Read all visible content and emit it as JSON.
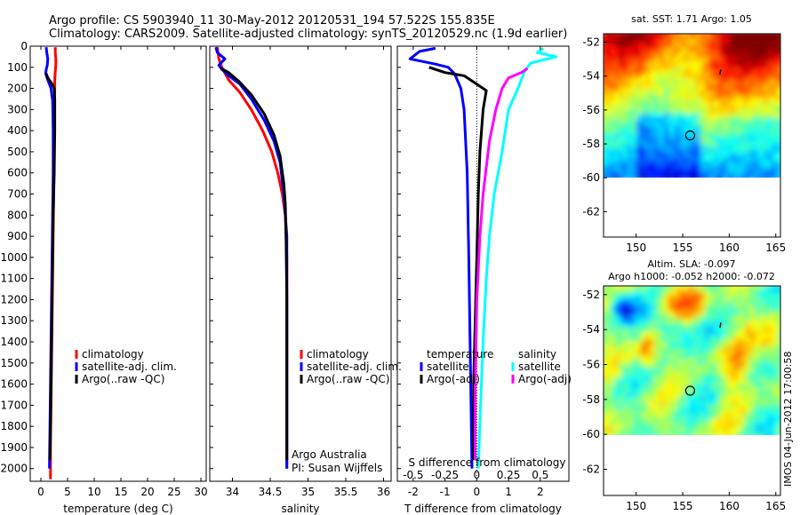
{
  "header": {
    "line1": "Argo profile: CS 5903940_11 30-May-2012 20120531_194 57.522S 155.835E",
    "line2": "Climatology: CARS2009. Satellite-adjusted climatology: synTS_20120529.nc (1.9d earlier)"
  },
  "colors": {
    "climatology": "#ff0000",
    "satellite": "#0000ff",
    "argo": "#000000",
    "sal_satellite": "#00ffff",
    "sal_argo": "#ff00ff"
  },
  "chart_data": [
    {
      "id": "temperature",
      "type": "line",
      "xlabel": "temperature (deg C)",
      "xlim": [
        -2,
        31
      ],
      "xticks": [
        0,
        5,
        10,
        15,
        20,
        25,
        30
      ],
      "ylim": [
        2060,
        0
      ],
      "yticks": [
        0,
        100,
        200,
        300,
        400,
        500,
        600,
        700,
        800,
        900,
        1000,
        1100,
        1200,
        1300,
        1400,
        1500,
        1600,
        1700,
        1800,
        1900,
        2000
      ],
      "legend": [
        "climatology",
        "satellite-adj. clim.",
        "Argo(..raw -QC)"
      ],
      "series": [
        {
          "name": "climatology",
          "color": "#ff0000",
          "points": [
            [
              2.7,
              5
            ],
            [
              2.7,
              30
            ],
            [
              2.8,
              60
            ],
            [
              2.8,
              90
            ],
            [
              2.7,
              120
            ],
            [
              2.6,
              160
            ],
            [
              2.6,
              200
            ],
            [
              2.5,
              300
            ],
            [
              2.5,
              500
            ],
            [
              2.4,
              700
            ],
            [
              2.3,
              900
            ],
            [
              2.2,
              1100
            ],
            [
              2.1,
              1300
            ],
            [
              2.0,
              1500
            ],
            [
              1.9,
              1700
            ],
            [
              1.8,
              1900
            ],
            [
              1.8,
              2050
            ]
          ]
        },
        {
          "name": "satellite-adj. clim.",
          "color": "#0000ff",
          "points": [
            [
              1.0,
              5
            ],
            [
              1.1,
              30
            ],
            [
              1.3,
              60
            ],
            [
              1.2,
              90
            ],
            [
              1.0,
              110
            ],
            [
              0.9,
              130
            ],
            [
              1.3,
              160
            ],
            [
              1.9,
              200
            ],
            [
              2.2,
              260
            ],
            [
              2.3,
              400
            ],
            [
              2.3,
              600
            ],
            [
              2.2,
              800
            ],
            [
              2.1,
              1000
            ],
            [
              2.0,
              1200
            ],
            [
              1.9,
              1400
            ],
            [
              1.8,
              1600
            ],
            [
              1.7,
              1800
            ],
            [
              1.6,
              2000
            ]
          ]
        },
        {
          "name": "Argo(..raw -QC)",
          "color": "#000000",
          "points": [
            [
              1.0,
              130
            ],
            [
              1.3,
              150
            ],
            [
              2.0,
              175
            ],
            [
              2.5,
              200
            ],
            [
              2.6,
              250
            ],
            [
              2.6,
              400
            ],
            [
              2.5,
              600
            ],
            [
              2.3,
              800
            ],
            [
              2.2,
              1000
            ],
            [
              2.1,
              1200
            ],
            [
              2.0,
              1400
            ],
            [
              1.9,
              1600
            ],
            [
              1.8,
              1800
            ],
            [
              1.7,
              1960
            ]
          ]
        }
      ]
    },
    {
      "id": "salinity",
      "type": "line",
      "xlabel": "salinity",
      "xlim": [
        33.7,
        36.1
      ],
      "xticks": [
        34,
        34.5,
        35,
        35.5,
        36
      ],
      "ylim": [
        2060,
        0
      ],
      "legend": [
        "climatology",
        "satellite-adj. clim.",
        "Argo(..raw -QC)"
      ],
      "annotation": [
        "Argo Australia",
        "PI: Susan Wijffels"
      ],
      "series": [
        {
          "name": "climatology",
          "color": "#ff0000",
          "points": [
            [
              33.8,
              5
            ],
            [
              33.82,
              60
            ],
            [
              33.86,
              100
            ],
            [
              33.95,
              160
            ],
            [
              34.1,
              220
            ],
            [
              34.25,
              300
            ],
            [
              34.4,
              400
            ],
            [
              34.52,
              500
            ],
            [
              34.6,
              600
            ],
            [
              34.66,
              700
            ],
            [
              34.7,
              800
            ],
            [
              34.72,
              1000
            ],
            [
              34.72,
              1400
            ],
            [
              34.72,
              2000
            ]
          ]
        },
        {
          "name": "satellite-adj. clim.",
          "color": "#0000ff",
          "points": [
            [
              33.78,
              5
            ],
            [
              33.8,
              30
            ],
            [
              33.9,
              60
            ],
            [
              33.82,
              90
            ],
            [
              33.86,
              110
            ],
            [
              33.95,
              140
            ],
            [
              34.1,
              180
            ],
            [
              34.25,
              250
            ],
            [
              34.42,
              350
            ],
            [
              34.55,
              450
            ],
            [
              34.63,
              550
            ],
            [
              34.68,
              700
            ],
            [
              34.72,
              900
            ],
            [
              34.72,
              1200
            ],
            [
              34.72,
              1600
            ],
            [
              34.72,
              2000
            ]
          ]
        },
        {
          "name": "Argo(..raw -QC)",
          "color": "#000000",
          "points": [
            [
              33.85,
              105
            ],
            [
              33.95,
              125
            ],
            [
              34.08,
              165
            ],
            [
              34.25,
              230
            ],
            [
              34.42,
              320
            ],
            [
              34.55,
              420
            ],
            [
              34.63,
              520
            ],
            [
              34.68,
              650
            ],
            [
              34.7,
              750
            ],
            [
              34.71,
              900
            ],
            [
              34.72,
              1200
            ],
            [
              34.72,
              1600
            ],
            [
              34.72,
              1960
            ]
          ]
        }
      ]
    },
    {
      "id": "differences",
      "type": "line",
      "xlabel": "T difference from climatology",
      "top_axis_label": "S difference from climatology",
      "xlim": [
        -2.5,
        2.9
      ],
      "xticks": [
        -2,
        -1,
        0,
        1,
        2
      ],
      "sticks": [
        "-0.5",
        "-0.25",
        "0",
        "0.25",
        "0.5"
      ],
      "ylim": [
        2060,
        0
      ],
      "legend_titles": [
        "temperature",
        "salinity"
      ],
      "legend": [
        "satellite",
        "Argo(-adj)",
        "satellite",
        "Argo(-adj)"
      ],
      "series": [
        {
          "name": "satellite",
          "group": "temperature",
          "color": "#0000ff",
          "points": [
            [
              -1.3,
              10
            ],
            [
              -1.8,
              25
            ],
            [
              -2.1,
              60
            ],
            [
              -1.3,
              85
            ],
            [
              -0.9,
              100
            ],
            [
              -0.7,
              130
            ],
            [
              -0.5,
              200
            ],
            [
              -0.4,
              300
            ],
            [
              -0.3,
              600
            ],
            [
              -0.25,
              1000
            ],
            [
              -0.2,
              1500
            ],
            [
              -0.15,
              2000
            ]
          ]
        },
        {
          "name": "Argo(-adj)",
          "group": "temperature",
          "color": "#000000",
          "points": [
            [
              -1.5,
              100
            ],
            [
              -1.0,
              125
            ],
            [
              -0.4,
              140
            ],
            [
              -0.1,
              170
            ],
            [
              0.3,
              210
            ],
            [
              0.2,
              300
            ],
            [
              0.1,
              500
            ],
            [
              0.05,
              700
            ],
            [
              0.0,
              1000
            ],
            [
              -0.05,
              1300
            ],
            [
              -0.1,
              1600
            ],
            [
              -0.1,
              1960
            ]
          ]
        },
        {
          "name": "satellite",
          "group": "salinity",
          "color": "#00ffff",
          "points": [
            [
              2.1,
              10
            ],
            [
              1.9,
              30
            ],
            [
              2.5,
              50
            ],
            [
              1.7,
              80
            ],
            [
              1.5,
              120
            ],
            [
              1.3,
              200
            ],
            [
              1.0,
              300
            ],
            [
              0.8,
              500
            ],
            [
              0.55,
              700
            ],
            [
              0.4,
              900
            ],
            [
              0.3,
              1100
            ],
            [
              0.2,
              1400
            ],
            [
              0.12,
              1700
            ],
            [
              0.05,
              2000
            ]
          ]
        },
        {
          "name": "Argo(-adj)",
          "group": "salinity",
          "color": "#ff00ff",
          "points": [
            [
              1.6,
              105
            ],
            [
              1.4,
              125
            ],
            [
              1.0,
              150
            ],
            [
              0.8,
              200
            ],
            [
              0.6,
              300
            ],
            [
              0.4,
              450
            ],
            [
              0.2,
              700
            ],
            [
              0.1,
              900
            ],
            [
              0.0,
              1200
            ],
            [
              -0.05,
              1600
            ],
            [
              -0.05,
              1960
            ]
          ]
        }
      ]
    },
    {
      "id": "sst_map",
      "type": "heatmap",
      "title": "sat. SST: 1.71 Argo: 1.05",
      "xticks": [
        150,
        155,
        160,
        165
      ],
      "yticks": [
        -52,
        -54,
        -56,
        -58,
        -60,
        -62
      ],
      "xlim": [
        146.5,
        165.5
      ],
      "ylim": [
        -63.5,
        -51.5
      ],
      "data_extent": [
        -60,
        -51.5
      ],
      "marker": {
        "lon": 155.8,
        "lat": -57.5
      }
    },
    {
      "id": "sla_map",
      "type": "heatmap",
      "title": "Altim. SLA: -0.097",
      "subtitle": "Argo h1000: -0.052 h2000: -0.072",
      "xticks": [
        150,
        155,
        160,
        165
      ],
      "yticks": [
        -52,
        -54,
        -56,
        -58,
        -60,
        -62
      ],
      "xlim": [
        146.5,
        165.5
      ],
      "ylim": [
        -63.5,
        -51.5
      ],
      "data_extent": [
        -60,
        -51.5
      ],
      "marker": {
        "lon": 155.8,
        "lat": -57.5
      }
    }
  ],
  "footer": "IMOS 04-Jun-2012 17:00:58"
}
